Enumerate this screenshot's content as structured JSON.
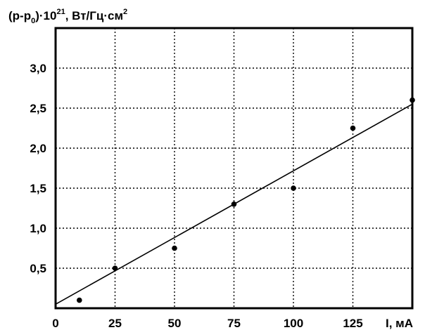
{
  "chart_data": {
    "type": "scatter",
    "ylabel_parts": [
      "(p-p",
      "0",
      ")·10",
      "21",
      ", Вт/Гц·см",
      "2"
    ],
    "xlabel": "I, мА",
    "xlim": [
      0,
      150
    ],
    "ylim": [
      0,
      3.5
    ],
    "x_ticks": [
      0,
      25,
      50,
      75,
      100,
      125
    ],
    "x_tick_labels": [
      "0",
      "25",
      "50",
      "75",
      "100",
      "125"
    ],
    "y_ticks": [
      0.5,
      1.0,
      1.5,
      2.0,
      2.5,
      3.0
    ],
    "y_tick_labels": [
      "0,5",
      "1,0",
      "1,5",
      "2,0",
      "2,5",
      "3,0"
    ],
    "grid": true,
    "series": [
      {
        "x": [
          10,
          25,
          50,
          75,
          100,
          125,
          150
        ],
        "y": [
          0.1,
          0.5,
          0.75,
          1.3,
          1.5,
          2.25,
          2.6
        ]
      }
    ],
    "fit_line": {
      "x": [
        0,
        150
      ],
      "y": [
        0.05,
        2.55
      ]
    }
  }
}
